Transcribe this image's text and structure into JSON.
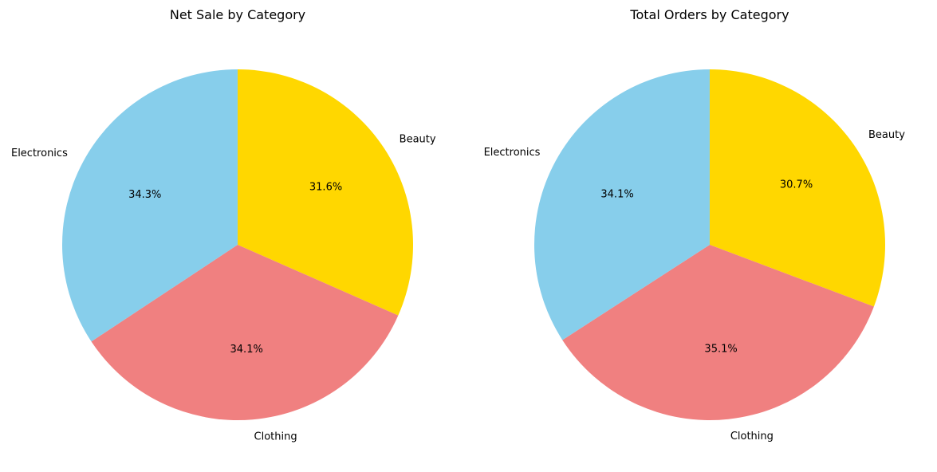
{
  "chart_data": [
    {
      "type": "pie",
      "title": "Net Sale by Category",
      "categories": [
        "Beauty",
        "Clothing",
        "Electronics"
      ],
      "values": [
        31.6,
        34.1,
        34.3
      ],
      "value_labels": [
        "31.6%",
        "34.1%",
        "34.3%"
      ],
      "colors": [
        "#ffd700",
        "#f08080",
        "#87ceeb"
      ],
      "start_angle_deg": 90,
      "direction": "clockwise",
      "legend": "none"
    },
    {
      "type": "pie",
      "title": "Total Orders by Category",
      "categories": [
        "Beauty",
        "Clothing",
        "Electronics"
      ],
      "values": [
        30.7,
        35.1,
        34.1
      ],
      "value_labels": [
        "30.7%",
        "35.1%",
        "34.1%"
      ],
      "colors": [
        "#ffd700",
        "#f08080",
        "#87ceeb"
      ],
      "start_angle_deg": 90,
      "direction": "clockwise",
      "legend": "none"
    }
  ]
}
